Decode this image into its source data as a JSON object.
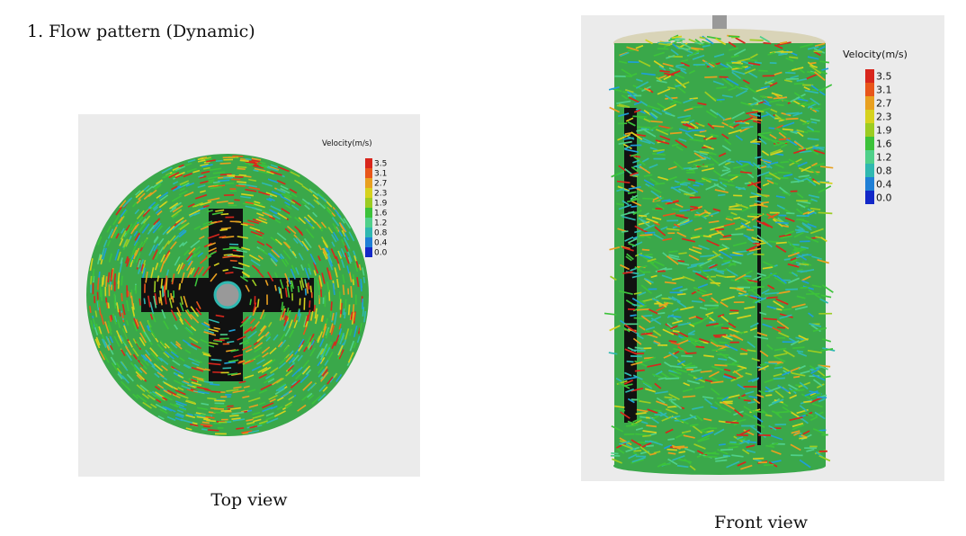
{
  "header": {
    "title": "1. Flow pattern (Dynamic)"
  },
  "figures": [
    {
      "legend": {
        "title": "Velocity(m/s)",
        "labels": [
          "3.5",
          "3.1",
          "2.7",
          "2.3",
          "1.9",
          "1.6",
          "1.2",
          "0.8",
          "0.4",
          "0.0"
        ]
      },
      "caption": "Top view"
    },
    {
      "legend": {
        "title": "Velocity(m/s)",
        "labels": [
          "3.5",
          "3.1",
          "2.7",
          "2.3",
          "1.9",
          "1.6",
          "1.2",
          "0.8",
          "0.4",
          "0.0"
        ]
      },
      "caption": "Front view"
    }
  ]
}
